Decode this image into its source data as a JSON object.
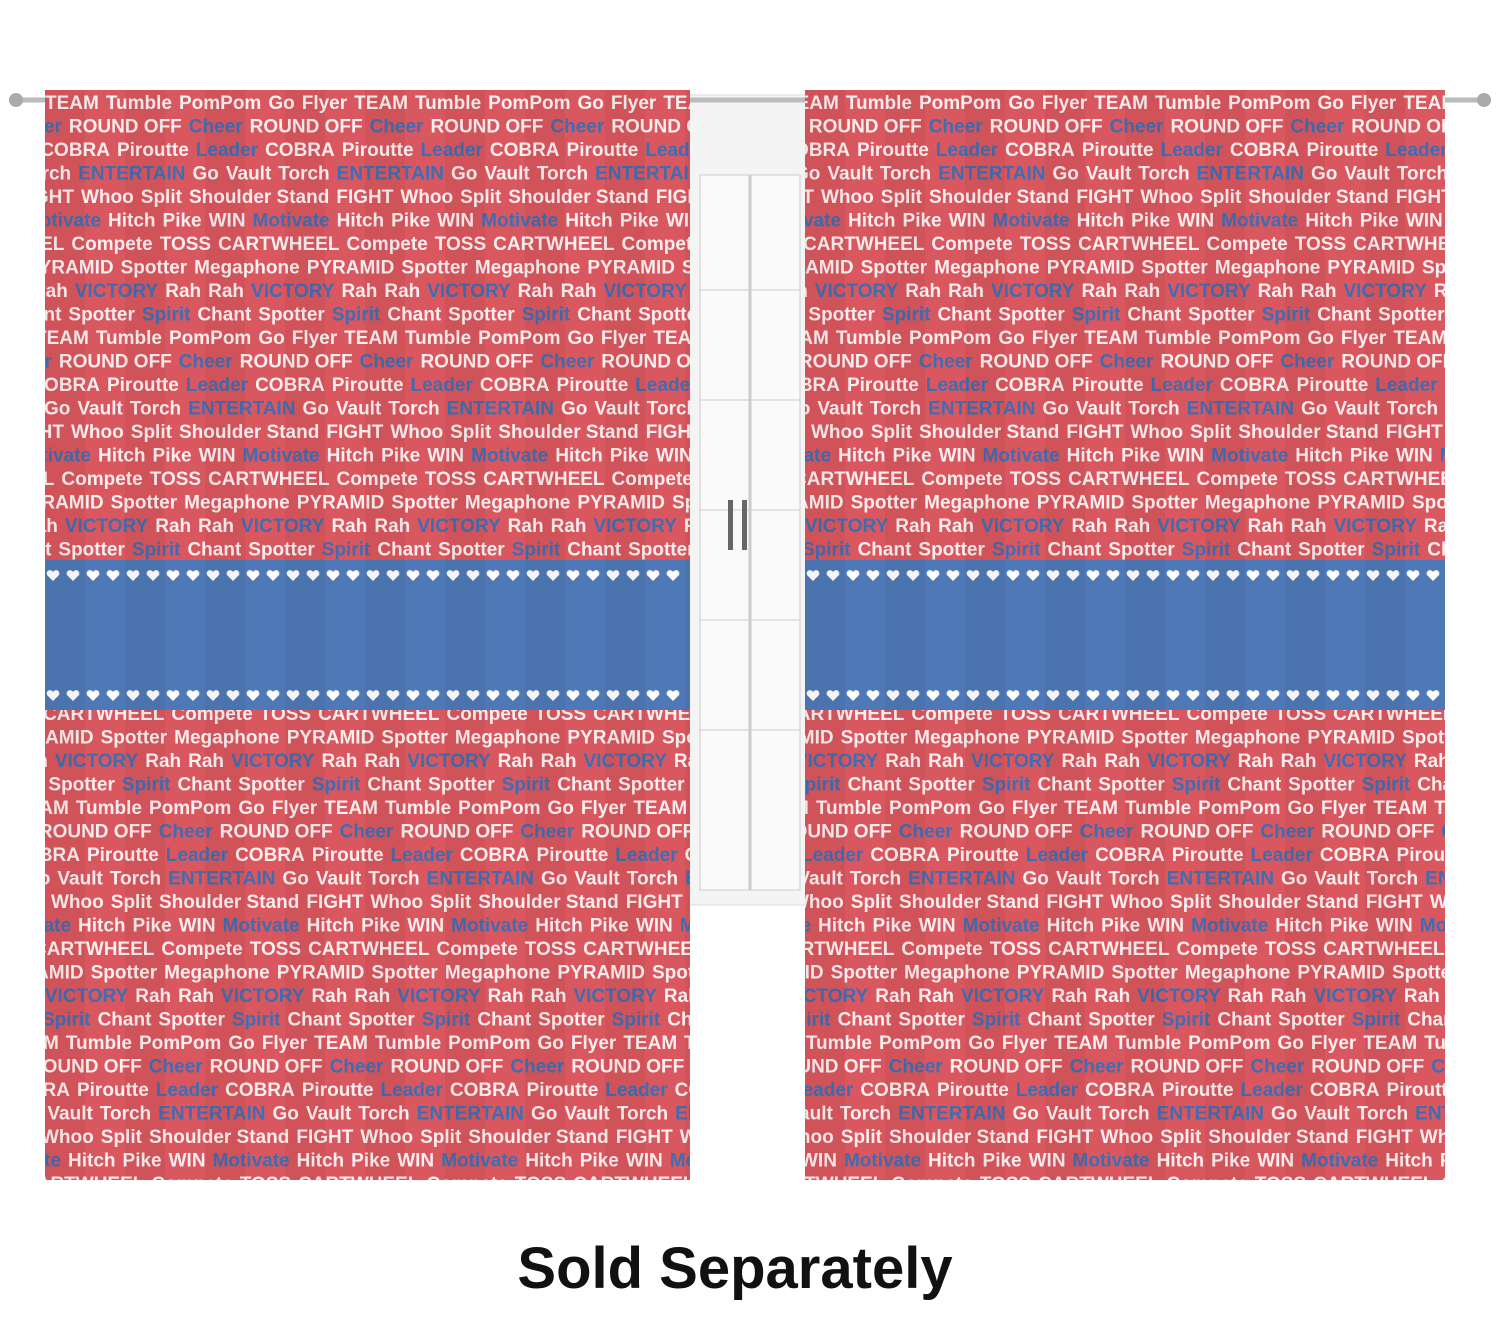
{
  "caption": "Sold Separately",
  "pattern": {
    "rows": [
      [
        {
          "text": "TEAM"
        },
        {
          "text": "Tumble"
        },
        {
          "text": "PomPom"
        },
        {
          "text": "Go"
        },
        {
          "text": "Flyer"
        }
      ],
      [
        {
          "text": "Cheer",
          "color": "#3f6db3"
        },
        {
          "text": "ROUND OFF"
        }
      ],
      [
        {
          "text": "Leader",
          "color": "#3f6db3"
        },
        {
          "text": "COBRA"
        },
        {
          "text": "Piroutte"
        }
      ],
      [
        {
          "text": "Go"
        },
        {
          "text": "Vault"
        },
        {
          "text": "Torch"
        },
        {
          "text": "ENTERTAIN",
          "color": "#3f6db3"
        }
      ],
      [
        {
          "text": "FIGHT"
        },
        {
          "text": "Whoo"
        },
        {
          "text": "Split"
        },
        {
          "text": "Shoulder Stand"
        }
      ],
      [
        {
          "text": "WIN"
        },
        {
          "text": "Motivate",
          "color": "#3f6db3"
        },
        {
          "text": "Hitch"
        },
        {
          "text": "Pike"
        }
      ],
      [
        {
          "text": "CARTWHEEL"
        },
        {
          "text": "Compete"
        },
        {
          "text": "TOSS"
        }
      ],
      [
        {
          "text": "PYRAMID"
        },
        {
          "text": "Spotter"
        },
        {
          "text": "Megaphone"
        }
      ],
      [
        {
          "text": "Rah"
        },
        {
          "text": "Rah"
        },
        {
          "text": "VICTORY",
          "color": "#3f6db3"
        }
      ],
      [
        {
          "text": "Spirit",
          "color": "#3f6db3"
        },
        {
          "text": "Chant"
        },
        {
          "text": "Spotter"
        }
      ]
    ]
  }
}
